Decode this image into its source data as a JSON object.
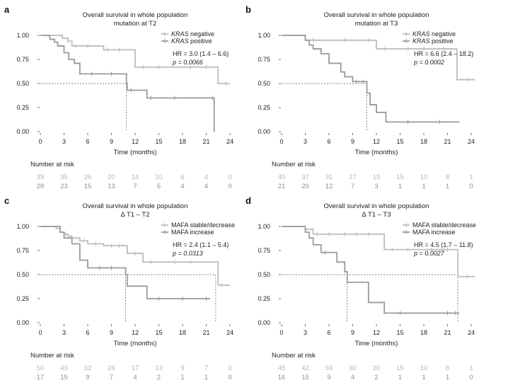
{
  "panels_text": [
    {
      "letter": "a",
      "title1": "Overall survival in whole population",
      "title2": "mutation at T2",
      "number_at_risk": "Number at risk"
    },
    {
      "letter": "b",
      "title1": "Overall survival in whole population",
      "title2": "mutation at T3",
      "number_at_risk": "Number at risk"
    },
    {
      "letter": "c",
      "title1": "Overall survival in whole population",
      "title2": "Δ T1 – T2",
      "number_at_risk": "Number at risk"
    },
    {
      "letter": "d",
      "title1": "Overall survival in whole population",
      "title2": "Δ T1 – T3",
      "number_at_risk": "Number at risk"
    }
  ],
  "colors": {
    "series1": "#bdbdbd",
    "series2": "#9a9a9a",
    "risk1": "#b5b5b5",
    "risk2": "#8f8f8f",
    "axis": "#444444",
    "ref": "#555555"
  },
  "chart_data": [
    {
      "type": "line",
      "subtype": "kaplan-meier",
      "title": "Overall survival in whole population mutation at T2",
      "xlabel": "Time (months)",
      "ylabel": "",
      "xlim": [
        0,
        24
      ],
      "ylim": [
        0,
        1
      ],
      "xticks": [
        0,
        3,
        6,
        9,
        12,
        15,
        18,
        21,
        24
      ],
      "yticks": [
        "0.00",
        "0.25",
        "0.50",
        "0.75",
        "1.00"
      ],
      "legend_position": "top-right",
      "hr": "HR = 3.0 (1.4 – 6.6)",
      "p": "p = 0.0066",
      "median_reference": {
        "y": 0.5,
        "x": 10.9
      },
      "risk_times": [
        0,
        3,
        6,
        9,
        12,
        15,
        18,
        21,
        24
      ],
      "series": [
        {
          "name": "KRAS negative",
          "name_italic": "KRAS",
          "name_rest": " negative",
          "x": [
            0,
            2,
            2.8,
            3.5,
            4,
            7.5,
            8,
            12,
            22,
            22.5,
            24
          ],
          "y": [
            1.0,
            1.0,
            0.97,
            0.94,
            0.89,
            0.89,
            0.85,
            0.67,
            0.67,
            0.5,
            0.5
          ],
          "censored": [
            [
              3.5,
              0.94
            ],
            [
              4.5,
              0.89
            ],
            [
              6,
              0.89
            ],
            [
              8.5,
              0.85
            ],
            [
              10,
              0.85
            ],
            [
              13,
              0.67
            ],
            [
              15,
              0.67
            ],
            [
              19,
              0.67
            ],
            [
              21,
              0.67
            ],
            [
              23.5,
              0.5
            ]
          ],
          "at_risk": [
            "39",
            "35",
            "26",
            "20",
            "14",
            "10",
            "6",
            "4",
            "0"
          ]
        },
        {
          "name": "KRAS positive",
          "name_italic": "KRAS",
          "name_rest": " positive",
          "x": [
            0,
            1.2,
            1.8,
            2.2,
            3,
            3.6,
            4.3,
            5,
            8,
            10.9,
            11,
            13.5,
            21,
            22
          ],
          "y": [
            1.0,
            0.96,
            0.93,
            0.89,
            0.82,
            0.75,
            0.71,
            0.6,
            0.6,
            0.5,
            0.43,
            0.35,
            0.35,
            0.0
          ],
          "censored": [
            [
              6.5,
              0.6
            ],
            [
              9,
              0.6
            ],
            [
              11.5,
              0.43
            ],
            [
              14,
              0.35
            ],
            [
              17,
              0.35
            ],
            [
              21.8,
              0.35
            ]
          ],
          "at_risk": [
            "28",
            "23",
            "15",
            "13",
            "7",
            "5",
            "4",
            "4",
            "0"
          ]
        }
      ]
    },
    {
      "type": "line",
      "subtype": "kaplan-meier",
      "title": "Overall survival in whole population mutation at T3",
      "xlabel": "Time (months)",
      "ylabel": "",
      "xlim": [
        0,
        24
      ],
      "ylim": [
        0,
        1
      ],
      "xticks": [
        0,
        3,
        6,
        9,
        12,
        15,
        18,
        21,
        24
      ],
      "yticks": [
        "0.00",
        "0.25",
        "0.50",
        "0.75",
        "1.00"
      ],
      "legend_position": "top-right",
      "hr": "HR = 6.6 (2.4 – 18.2)",
      "p": "p = 0.0002",
      "median_reference": {
        "y": 0.5,
        "x": 10.8
      },
      "risk_times": [
        0,
        3,
        6,
        9,
        12,
        15,
        18,
        21,
        24
      ],
      "series": [
        {
          "name": "KRAS negative",
          "name_italic": "KRAS",
          "name_rest": " negative",
          "x": [
            0,
            2.5,
            3,
            12,
            21,
            22.2,
            24.5
          ],
          "y": [
            1.0,
            1.0,
            0.95,
            0.86,
            0.86,
            0.54,
            0.54
          ],
          "censored": [
            [
              4,
              0.95
            ],
            [
              8,
              0.95
            ],
            [
              11,
              0.95
            ],
            [
              13,
              0.86
            ],
            [
              16,
              0.86
            ],
            [
              18,
              0.86
            ],
            [
              20.5,
              0.86
            ],
            [
              23.5,
              0.54
            ]
          ],
          "at_risk": [
            "40",
            "37",
            "31",
            "27",
            "19",
            "15",
            "10",
            "8",
            "1"
          ]
        },
        {
          "name": "KRAS positive",
          "name_italic": "KRAS",
          "name_rest": " positive",
          "x": [
            0,
            3,
            3.5,
            4,
            5,
            6,
            7.5,
            8,
            9,
            10.8,
            11.2,
            12,
            13.2,
            22.5
          ],
          "y": [
            1.0,
            0.95,
            0.9,
            0.86,
            0.81,
            0.71,
            0.62,
            0.57,
            0.52,
            0.4,
            0.28,
            0.2,
            0.1,
            0.1
          ],
          "censored": [
            [
              9.5,
              0.52
            ],
            [
              10.3,
              0.52
            ],
            [
              16,
              0.1
            ],
            [
              20,
              0.1
            ]
          ],
          "at_risk": [
            "21",
            "20",
            "12",
            "7",
            "3",
            "1",
            "1",
            "1",
            "0"
          ]
        }
      ]
    },
    {
      "type": "line",
      "subtype": "kaplan-meier",
      "title": "Overall survival in whole population Δ T1 – T2",
      "xlabel": "Time (months)",
      "ylabel": "",
      "xlim": [
        0,
        24
      ],
      "ylim": [
        0,
        1
      ],
      "xticks": [
        0,
        3,
        6,
        9,
        12,
        15,
        18,
        21,
        24
      ],
      "yticks": [
        "0.00",
        "0.25",
        "0.50",
        "0.75",
        "1.00"
      ],
      "legend_position": "top-right",
      "hr": "HR = 2.4 (1.1 – 5.4)",
      "p": "p = 0.0313",
      "median_reference": [
        {
          "y": 0.5,
          "x": 10.8
        },
        {
          "y": 0.5,
          "x": 22.2
        }
      ],
      "risk_times": [
        0,
        3,
        6,
        9,
        12,
        15,
        18,
        21,
        24
      ],
      "series": [
        {
          "name": "MAFA stable/decrease",
          "x": [
            0,
            1.5,
            2,
            2.5,
            3,
            3.5,
            4,
            5,
            6,
            8,
            11,
            13,
            22,
            22.5,
            24
          ],
          "y": [
            1.0,
            1.0,
            0.98,
            0.94,
            0.92,
            0.9,
            0.88,
            0.85,
            0.82,
            0.8,
            0.72,
            0.63,
            0.63,
            0.39,
            0.39
          ],
          "censored": [
            [
              3.2,
              0.92
            ],
            [
              5.5,
              0.85
            ],
            [
              7,
              0.82
            ],
            [
              9,
              0.8
            ],
            [
              10,
              0.8
            ],
            [
              12,
              0.72
            ],
            [
              14,
              0.63
            ],
            [
              17,
              0.63
            ],
            [
              19,
              0.63
            ],
            [
              23,
              0.39
            ]
          ],
          "at_risk": [
            "50",
            "43",
            "32",
            "26",
            "17",
            "13",
            "9",
            "7",
            "0"
          ]
        },
        {
          "name": "MAFA increase",
          "x": [
            0,
            2,
            2.5,
            3,
            4,
            5,
            6,
            10.8,
            11,
            13.5,
            21.5
          ],
          "y": [
            1.0,
            1.0,
            0.94,
            0.88,
            0.82,
            0.65,
            0.57,
            0.5,
            0.38,
            0.25,
            0.25
          ],
          "censored": [
            [
              7.5,
              0.57
            ],
            [
              9,
              0.57
            ],
            [
              15,
              0.25
            ],
            [
              18,
              0.25
            ],
            [
              21,
              0.25
            ]
          ],
          "at_risk": [
            "17",
            "15",
            "9",
            "7",
            "4",
            "2",
            "1",
            "1",
            "0"
          ]
        }
      ]
    },
    {
      "type": "line",
      "subtype": "kaplan-meier",
      "title": "Overall survival in whole population Δ T1 – T3",
      "xlabel": "Time (months)",
      "ylabel": "",
      "xlim": [
        0,
        24
      ],
      "ylim": [
        0,
        1
      ],
      "xticks": [
        0,
        3,
        6,
        9,
        12,
        15,
        18,
        21,
        24
      ],
      "yticks": [
        "0.00",
        "0.25",
        "0.50",
        "0.75",
        "1.00"
      ],
      "legend_position": "top-right",
      "hr": "HR = 4.5 (1.7 – 11.8)",
      "p": "p = 0.0027",
      "median_reference": [
        {
          "y": 0.5,
          "x": 8.3
        },
        {
          "y": 0.5,
          "x": 22.3
        }
      ],
      "risk_times": [
        0,
        3,
        6,
        9,
        12,
        15,
        18,
        21,
        24
      ],
      "series": [
        {
          "name": "MAFA stable/decrease",
          "x": [
            0,
            2.5,
            3,
            4,
            13,
            22,
            22.3,
            24.5
          ],
          "y": [
            1.0,
            1.0,
            0.97,
            0.92,
            0.76,
            0.76,
            0.48,
            0.48
          ],
          "censored": [
            [
              4.5,
              0.92
            ],
            [
              6,
              0.92
            ],
            [
              8,
              0.92
            ],
            [
              9.5,
              0.92
            ],
            [
              11,
              0.92
            ],
            [
              14,
              0.76
            ],
            [
              16,
              0.76
            ],
            [
              19,
              0.76
            ],
            [
              21,
              0.76
            ],
            [
              23.5,
              0.48
            ]
          ],
          "at_risk": [
            "45",
            "42",
            "34",
            "30",
            "20",
            "15",
            "10",
            "8",
            "1"
          ]
        },
        {
          "name": "MAFA increase",
          "x": [
            0,
            3,
            3.5,
            4,
            5,
            7,
            8,
            8.3,
            10.7,
            11,
            13,
            22.5
          ],
          "y": [
            1.0,
            0.94,
            0.88,
            0.81,
            0.73,
            0.63,
            0.53,
            0.42,
            0.42,
            0.21,
            0.1,
            0.1
          ],
          "censored": [
            [
              5.5,
              0.73
            ],
            [
              15,
              0.1
            ],
            [
              21,
              0.1
            ],
            [
              22,
              0.1
            ]
          ],
          "at_risk": [
            "16",
            "15",
            "9",
            "4",
            "2",
            "1",
            "1",
            "1",
            "0"
          ]
        }
      ]
    }
  ]
}
